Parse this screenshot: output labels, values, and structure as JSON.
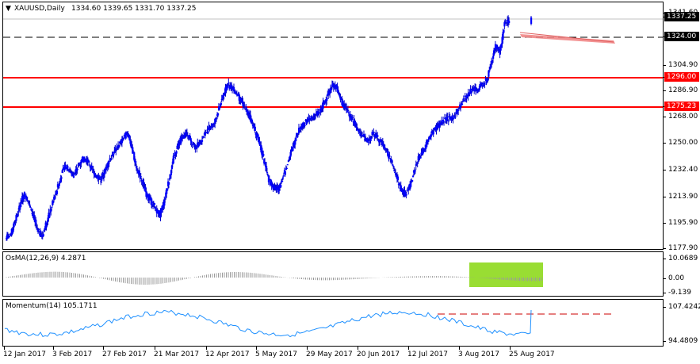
{
  "main": {
    "symbol": "XAUUSD,Daily",
    "ohlc": "1334.60 1339.65 1331.70 1337.25",
    "price_levels": [
      "1341.60",
      "1337.25",
      "1324.00",
      "1304.90",
      "1296.00",
      "1286.90",
      "1275.23",
      "1268.00",
      "1250.00",
      "1232.40",
      "1213.90",
      "1195.90",
      "1177.90"
    ],
    "tags": {
      "last": "1337.25",
      "dash": "1324.00",
      "r1": "1296.00",
      "r2": "1275.23"
    },
    "colors": {
      "up": "#0000ff",
      "down": "#0000cc",
      "resistance": "#ff0000",
      "trend": "#f08080",
      "last_tag": "#000000",
      "dash_tag": "#000000"
    }
  },
  "osma": {
    "title": "OsMA(12,26,9) 4.2871",
    "levels": [
      "10.0689",
      "0.00",
      "-9.139"
    ],
    "highlight_color": "#99dd33"
  },
  "momentum": {
    "title": "Momentum(14) 105.1711",
    "levels": [
      "107.4242",
      "94.4809"
    ]
  },
  "xaxis": {
    "labels": [
      "12 Jan 2017",
      "3 Feb 2017",
      "27 Feb 2017",
      "21 Mar 2017",
      "12 Apr 2017",
      "5 May 2017",
      "29 May 2017",
      "20 Jun 2017",
      "12 Jul 2017",
      "3 Aug 2017",
      "25 Aug 2017"
    ]
  },
  "chart_data": [
    {
      "type": "candlestick",
      "title": "XAUUSD,Daily",
      "ylim": [
        1177.9,
        1341.6
      ],
      "horizontal_lines": [
        1296.0,
        1275.23,
        1324.0
      ],
      "close_path": [
        1185,
        1195,
        1205,
        1215,
        1210,
        1200,
        1190,
        1185,
        1195,
        1205,
        1215,
        1225,
        1235,
        1232,
        1228,
        1235,
        1240,
        1238,
        1232,
        1228,
        1225,
        1232,
        1240,
        1245,
        1250,
        1255,
        1258,
        1245,
        1232,
        1225,
        1215,
        1210,
        1205,
        1200,
        1210,
        1225,
        1240,
        1250,
        1255,
        1258,
        1252,
        1248,
        1252,
        1258,
        1262,
        1265,
        1275,
        1285,
        1292,
        1290,
        1285,
        1280,
        1275,
        1268,
        1260,
        1250,
        1238,
        1225,
        1220,
        1218,
        1225,
        1235,
        1245,
        1255,
        1262,
        1265,
        1268,
        1270,
        1272,
        1278,
        1285,
        1292,
        1290,
        1280,
        1275,
        1270,
        1265,
        1258,
        1255,
        1252,
        1258,
        1255,
        1250,
        1245,
        1238,
        1228,
        1220,
        1215,
        1220,
        1230,
        1240,
        1245,
        1252,
        1258,
        1262,
        1265,
        1268,
        1268,
        1270,
        1275,
        1282,
        1285,
        1290,
        1288,
        1292,
        1295,
        1305,
        1320,
        1315,
        1335,
        1337
      ]
    },
    {
      "type": "bar",
      "title": "OsMA(12,26,9) 4.2871",
      "ylim": [
        -9.139,
        10.0689
      ]
    },
    {
      "type": "line",
      "title": "Momentum(14) 105.1711",
      "ylim": [
        94.4809,
        107.4242
      ]
    }
  ]
}
